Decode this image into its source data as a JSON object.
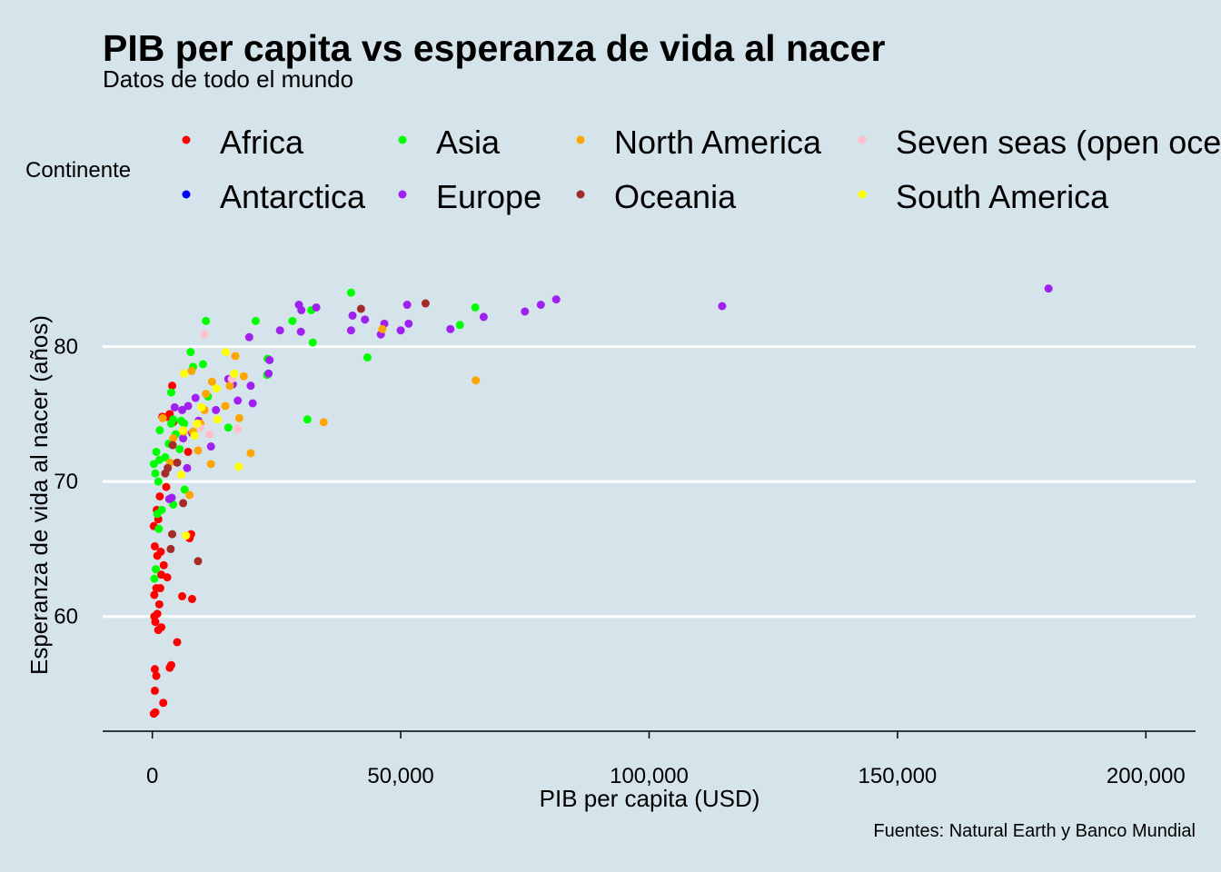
{
  "chart_data": {
    "type": "scatter",
    "title": "PIB per capita vs esperanza de vida al nacer",
    "subtitle": "Datos de todo el mundo",
    "caption": "Fuentes: Natural Earth y Banco Mundial",
    "xlabel": "PIB per capita (USD)",
    "ylabel": "Esperanza de vida al nacer (años)",
    "xlim": [
      -10000,
      210000
    ],
    "ylim": [
      51.5,
      86.5
    ],
    "xticks": [
      0,
      50000,
      100000,
      150000,
      200000
    ],
    "xtick_labels": [
      "0",
      "50,000",
      "100,000",
      "150,000",
      "200,000"
    ],
    "yticks": [
      60,
      70,
      80
    ],
    "ytick_labels": [
      "60",
      "70",
      "80"
    ],
    "grid": "horizontal major lines",
    "legend": {
      "title": "Continente",
      "position": "top",
      "entries": [
        {
          "name": "Africa",
          "color": "#ff0000"
        },
        {
          "name": "Antarctica",
          "color": "#0000ff"
        },
        {
          "name": "Asia",
          "color": "#00ff00"
        },
        {
          "name": "Europe",
          "color": "#a020f0"
        },
        {
          "name": "North America",
          "color": "#ffa500"
        },
        {
          "name": "Oceania",
          "color": "#a52a2a"
        },
        {
          "name": "Seven seas (open ocean)",
          "color": "#ffc0cb"
        },
        {
          "name": "South America",
          "color": "#ffff00"
        }
      ]
    },
    "series": [
      {
        "name": "Africa",
        "color": "#ff0000",
        "points": [
          [
            300,
            52.8
          ],
          [
            600,
            52.9
          ],
          [
            2200,
            53.6
          ],
          [
            500,
            54.5
          ],
          [
            800,
            55.6
          ],
          [
            500,
            56.1
          ],
          [
            3500,
            56.2
          ],
          [
            3800,
            56.4
          ],
          [
            5000,
            58.1
          ],
          [
            1200,
            59.0
          ],
          [
            1800,
            59.2
          ],
          [
            600,
            59.6
          ],
          [
            400,
            60.0
          ],
          [
            1000,
            60.2
          ],
          [
            1400,
            60.9
          ],
          [
            6000,
            61.5
          ],
          [
            8000,
            61.3
          ],
          [
            400,
            61.6
          ],
          [
            800,
            62.1
          ],
          [
            1600,
            62.1
          ],
          [
            3000,
            62.9
          ],
          [
            1800,
            63.1
          ],
          [
            2300,
            63.8
          ],
          [
            1000,
            64.5
          ],
          [
            1700,
            64.8
          ],
          [
            500,
            65.2
          ],
          [
            7500,
            65.8
          ],
          [
            7800,
            66.1
          ],
          [
            300,
            66.7
          ],
          [
            1200,
            67.2
          ],
          [
            900,
            67.9
          ],
          [
            1500,
            68.9
          ],
          [
            2800,
            69.6
          ],
          [
            7200,
            72.2
          ],
          [
            4200,
            74.4
          ],
          [
            3000,
            74.8
          ],
          [
            3500,
            75.0
          ],
          [
            4000,
            77.1
          ],
          [
            2000,
            74.8
          ]
        ]
      },
      {
        "name": "Asia",
        "color": "#00ff00",
        "points": [
          [
            400,
            62.8
          ],
          [
            700,
            63.5
          ],
          [
            1300,
            66.5
          ],
          [
            1000,
            67.6
          ],
          [
            1900,
            67.9
          ],
          [
            4200,
            68.3
          ],
          [
            6500,
            69.4
          ],
          [
            1200,
            70.0
          ],
          [
            600,
            70.6
          ],
          [
            300,
            71.3
          ],
          [
            1400,
            71.6
          ],
          [
            2600,
            71.8
          ],
          [
            800,
            72.2
          ],
          [
            5500,
            72.4
          ],
          [
            3300,
            72.8
          ],
          [
            1500,
            73.8
          ],
          [
            4700,
            73.5
          ],
          [
            3800,
            74.3
          ],
          [
            5800,
            74.5
          ],
          [
            6400,
            74.3
          ],
          [
            4200,
            74.6
          ],
          [
            3800,
            76.6
          ],
          [
            8200,
            78.5
          ],
          [
            7700,
            79.6
          ],
          [
            10200,
            78.7
          ],
          [
            11200,
            76.3
          ],
          [
            15300,
            74.0
          ],
          [
            10800,
            81.9
          ],
          [
            20800,
            81.9
          ],
          [
            23200,
            79.1
          ],
          [
            23100,
            77.9
          ],
          [
            28200,
            81.9
          ],
          [
            31200,
            74.6
          ],
          [
            32000,
            82.7
          ],
          [
            32300,
            80.3
          ],
          [
            40000,
            84.0
          ],
          [
            43300,
            79.2
          ],
          [
            61900,
            81.6
          ],
          [
            65000,
            82.9
          ]
        ]
      },
      {
        "name": "Europe",
        "color": "#a020f0",
        "points": [
          [
            3400,
            68.7
          ],
          [
            3900,
            68.8
          ],
          [
            7000,
            71.0
          ],
          [
            6200,
            73.2
          ],
          [
            8000,
            73.6
          ],
          [
            11800,
            72.6
          ],
          [
            9300,
            74.5
          ],
          [
            6000,
            75.3
          ],
          [
            7200,
            75.6
          ],
          [
            4500,
            75.5
          ],
          [
            8700,
            76.2
          ],
          [
            12800,
            75.3
          ],
          [
            15300,
            77.6
          ],
          [
            16200,
            77.2
          ],
          [
            17200,
            76.0
          ],
          [
            19800,
            77.1
          ],
          [
            20200,
            75.8
          ],
          [
            19500,
            80.7
          ],
          [
            23400,
            78.0
          ],
          [
            23600,
            79.0
          ],
          [
            25700,
            81.2
          ],
          [
            29500,
            83.1
          ],
          [
            30000,
            82.7
          ],
          [
            33000,
            82.9
          ],
          [
            29900,
            81.1
          ],
          [
            40000,
            81.2
          ],
          [
            40300,
            82.3
          ],
          [
            42800,
            82.0
          ],
          [
            46000,
            80.9
          ],
          [
            46700,
            81.7
          ],
          [
            50000,
            81.2
          ],
          [
            51300,
            83.1
          ],
          [
            51600,
            81.7
          ],
          [
            60000,
            81.3
          ],
          [
            66700,
            82.2
          ],
          [
            75000,
            82.6
          ],
          [
            78200,
            83.1
          ],
          [
            81300,
            83.5
          ],
          [
            114700,
            83.0
          ],
          [
            180400,
            84.3
          ]
        ]
      },
      {
        "name": "North America",
        "color": "#ffa500",
        "points": [
          [
            2100,
            74.7
          ],
          [
            3600,
            71.4
          ],
          [
            4200,
            73.2
          ],
          [
            6300,
            73.7
          ],
          [
            7500,
            69.0
          ],
          [
            8200,
            73.7
          ],
          [
            9200,
            72.3
          ],
          [
            9700,
            74.3
          ],
          [
            10500,
            75.3
          ],
          [
            10800,
            76.5
          ],
          [
            11800,
            71.3
          ],
          [
            12000,
            77.4
          ],
          [
            7900,
            78.2
          ],
          [
            14700,
            75.6
          ],
          [
            15600,
            77.1
          ],
          [
            16700,
            79.3
          ],
          [
            17500,
            74.7
          ],
          [
            18400,
            77.8
          ],
          [
            19800,
            72.1
          ],
          [
            34500,
            74.4
          ],
          [
            46300,
            81.3
          ],
          [
            65100,
            77.5
          ]
        ]
      },
      {
        "name": "Oceania",
        "color": "#a52a2a",
        "points": [
          [
            2600,
            70.6
          ],
          [
            3100,
            71.0
          ],
          [
            3700,
            65.0
          ],
          [
            4000,
            66.1
          ],
          [
            4100,
            72.7
          ],
          [
            5000,
            71.4
          ],
          [
            6200,
            68.4
          ],
          [
            9200,
            64.1
          ],
          [
            42000,
            82.8
          ],
          [
            55000,
            83.2
          ]
        ]
      },
      {
        "name": "Seven seas (open ocean)",
        "color": "#ffc0cb",
        "points": [
          [
            10500,
            80.9
          ],
          [
            11500,
            73.5
          ],
          [
            17200,
            73.9
          ],
          [
            9600,
            74.0
          ],
          [
            16000,
            77.6
          ]
        ]
      },
      {
        "name": "South America",
        "color": "#ffff00",
        "points": [
          [
            6800,
            66.0
          ],
          [
            5800,
            70.5
          ],
          [
            6200,
            73.8
          ],
          [
            6400,
            78.0
          ],
          [
            8500,
            73.4
          ],
          [
            9000,
            74.3
          ],
          [
            9900,
            75.5
          ],
          [
            12900,
            76.9
          ],
          [
            14800,
            79.6
          ],
          [
            17400,
            71.1
          ],
          [
            16500,
            78.0
          ],
          [
            13100,
            74.6
          ]
        ]
      }
    ]
  }
}
